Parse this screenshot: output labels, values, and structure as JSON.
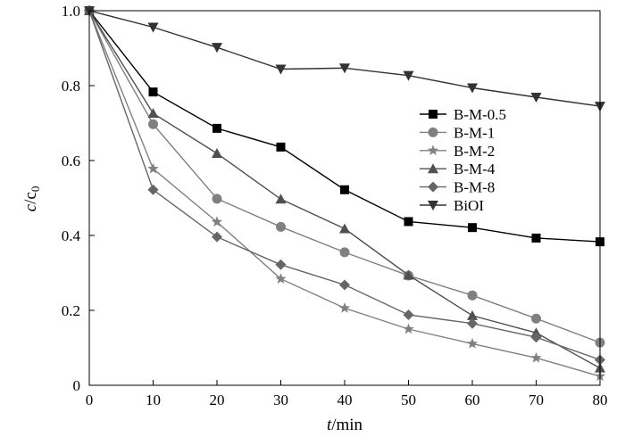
{
  "chart_data": {
    "type": "line",
    "title": "",
    "xlabel": "",
    "xlabel_var": "t",
    "xlabel_unit": "/min",
    "ylabel": "",
    "ylabel_var": "c",
    "ylabel_mid": "/c",
    "ylabel_sub": "0",
    "xlim": [
      0,
      80
    ],
    "ylim": [
      0,
      1.0
    ],
    "x_ticks": [
      0,
      10,
      20,
      30,
      40,
      50,
      60,
      70,
      80
    ],
    "y_ticks": [
      0,
      0.2,
      0.4,
      0.6,
      0.8,
      1.0
    ],
    "x_tick_labels": [
      "0",
      "10",
      "20",
      "30",
      "40",
      "50",
      "60",
      "70",
      "80"
    ],
    "y_tick_labels": [
      "0",
      "0.2",
      "0.4",
      "0.6",
      "0.8",
      "1.0"
    ],
    "grid": false,
    "legend_position": "right",
    "x": [
      0,
      10,
      20,
      30,
      40,
      50,
      60,
      70,
      80
    ],
    "series": [
      {
        "name": "B-M-0.5",
        "marker": "square",
        "color": "#000000",
        "values": [
          1.0,
          0.783,
          0.686,
          0.636,
          0.522,
          0.437,
          0.421,
          0.393,
          0.383
        ]
      },
      {
        "name": "B-M-1",
        "marker": "circle",
        "color": "#808080",
        "values": [
          1.0,
          0.697,
          0.498,
          0.423,
          0.355,
          0.293,
          0.24,
          0.178,
          0.114
        ]
      },
      {
        "name": "B-M-2",
        "marker": "star",
        "color": "#808080",
        "values": [
          1.0,
          0.578,
          0.436,
          0.284,
          0.206,
          0.15,
          0.111,
          0.073,
          0.024
        ]
      },
      {
        "name": "B-M-4",
        "marker": "triangle-up",
        "color": "#505050",
        "values": [
          1.0,
          0.726,
          0.619,
          0.497,
          0.418,
          0.294,
          0.186,
          0.14,
          0.046
        ]
      },
      {
        "name": "B-M-8",
        "marker": "diamond",
        "color": "#666666",
        "values": [
          1.0,
          0.522,
          0.396,
          0.322,
          0.268,
          0.188,
          0.165,
          0.128,
          0.068
        ]
      },
      {
        "name": "BiOI",
        "marker": "triangle-down",
        "color": "#333333",
        "values": [
          1.0,
          0.956,
          0.902,
          0.844,
          0.847,
          0.827,
          0.794,
          0.769,
          0.745
        ]
      }
    ]
  }
}
